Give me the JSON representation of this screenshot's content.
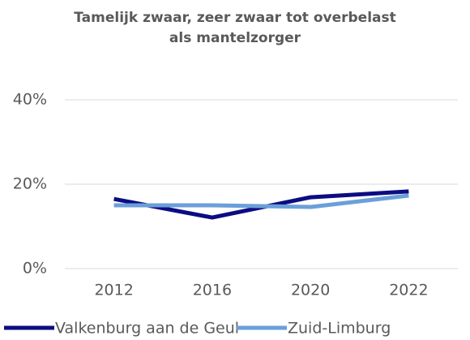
{
  "chart_data": {
    "type": "line",
    "title": "Tamelijk zwaar, zeer zwaar tot overbelast als mantelzorger",
    "categories": [
      "2012",
      "2016",
      "2020",
      "2022"
    ],
    "series": [
      {
        "name": "Valkenburg aan de Geul",
        "color": "#0c0c82",
        "values": [
          16.5,
          12.1,
          16.9,
          18.3
        ]
      },
      {
        "name": "Zuid-Limburg",
        "color": "#6b9fd9",
        "values": [
          15.0,
          15.0,
          14.6,
          17.3
        ]
      }
    ],
    "ylim": [
      0,
      40
    ],
    "yticks": [
      {
        "value": 0,
        "label": "0%"
      },
      {
        "value": 20,
        "label": "20%"
      },
      {
        "value": 40,
        "label": "40%"
      }
    ],
    "grid": true,
    "legend": "bottom"
  }
}
